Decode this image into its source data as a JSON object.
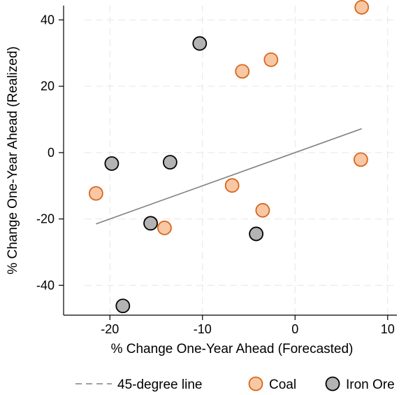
{
  "chart_data": {
    "type": "scatter",
    "title": "",
    "xlabel": "% Change One-Year Ahead (Forecasted)",
    "ylabel": "% Change One-Year Ahead (Realized)",
    "xlim": [
      -25,
      11
    ],
    "ylim": [
      -49,
      46
    ],
    "xticks": [
      -20,
      -10,
      0,
      10
    ],
    "yticks": [
      40,
      20,
      0,
      -20,
      -40
    ],
    "grid": true,
    "legend_position": "bottom",
    "series": [
      {
        "name": "Coal",
        "kind": "points",
        "fill": "#f8c8a4",
        "stroke": "#d9661c",
        "x": [
          7.2,
          -2.6,
          -5.7,
          -21.5,
          -6.8,
          -14.1,
          -3.5,
          7.1
        ],
        "y": [
          43.8,
          28.0,
          24.5,
          -12.3,
          -9.9,
          -22.7,
          -17.4,
          -2.1
        ]
      },
      {
        "name": "Iron Ore",
        "kind": "points",
        "fill": "#b3b3b3",
        "stroke": "#000000",
        "x": [
          -10.3,
          -19.8,
          -13.5,
          -15.6,
          -4.2,
          -18.6
        ],
        "y": [
          32.9,
          -3.3,
          -2.9,
          -21.3,
          -24.5,
          -46.2
        ]
      },
      {
        "name": "45-degree line",
        "kind": "line",
        "stroke": "#808080",
        "x": [
          -21.5,
          7.2
        ],
        "y": [
          -21.5,
          7.2
        ]
      }
    ]
  },
  "legend": {
    "items": [
      {
        "label": "45-degree line",
        "kind": "line"
      },
      {
        "label": "Coal",
        "kind": "marker",
        "series": 0
      },
      {
        "label": "Iron Ore",
        "kind": "marker",
        "series": 1
      }
    ]
  }
}
